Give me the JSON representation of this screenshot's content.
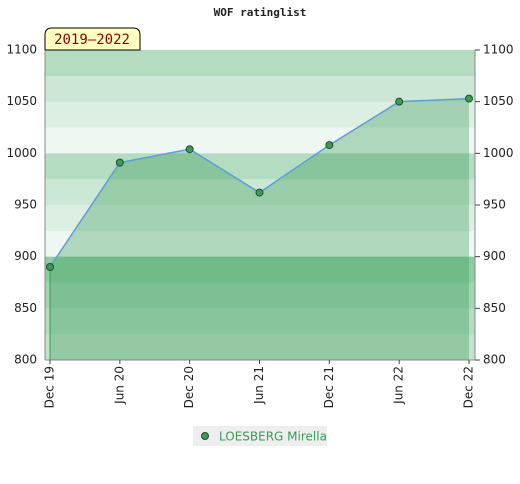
{
  "chart_data": {
    "type": "area",
    "title": "WOF ratinglist",
    "badge": "2019–2022",
    "categories": [
      "Dec 19",
      "Jun 20",
      "Dec 20",
      "Jun 21",
      "Dec 21",
      "Jun 22",
      "Dec 22"
    ],
    "series": [
      {
        "name": "LOESBERG Mirella",
        "color": "#3a9a5a",
        "values": [
          890,
          991,
          1004,
          962,
          1008,
          1050,
          1053
        ]
      }
    ],
    "ylim": [
      800,
      1100
    ],
    "yticks": [
      800,
      850,
      900,
      950,
      1000,
      1050,
      1100
    ]
  }
}
